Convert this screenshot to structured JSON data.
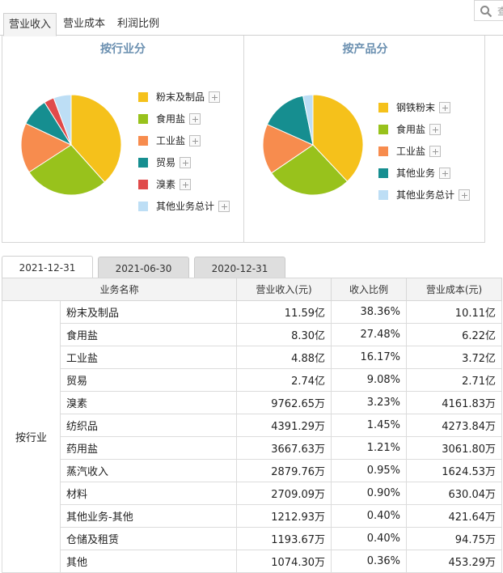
{
  "top_tabs": [
    "营业收入",
    "营业成本",
    "利润比例"
  ],
  "search": {
    "label": "查"
  },
  "pies": [
    {
      "title": "按行业分",
      "items": [
        {
          "label": "粉末及制品",
          "color": "#f5c11b",
          "value": 38.36
        },
        {
          "label": "食用盐",
          "color": "#98c21c",
          "value": 27.48
        },
        {
          "label": "工业盐",
          "color": "#f78c4e",
          "value": 16.17
        },
        {
          "label": "贸易",
          "color": "#168e90",
          "value": 9.08
        },
        {
          "label": "溴素",
          "color": "#e04a4a",
          "value": 3.23
        },
        {
          "label": "其他业务总计",
          "color": "#bddef5",
          "value": 5.68
        }
      ]
    },
    {
      "title": "按产品分",
      "items": [
        {
          "label": "钢铁粉末",
          "color": "#f5c11b",
          "value": 38.0
        },
        {
          "label": "食用盐",
          "color": "#98c21c",
          "value": 27.5
        },
        {
          "label": "工业盐",
          "color": "#f78c4e",
          "value": 16.2
        },
        {
          "label": "其他业务",
          "color": "#168e90",
          "value": 15.1
        },
        {
          "label": "其他业务总计",
          "color": "#bddef5",
          "value": 3.2
        }
      ]
    }
  ],
  "date_tabs": [
    "2021-12-31",
    "2021-06-30",
    "2020-12-31"
  ],
  "table": {
    "headers": [
      "业务名称",
      "营业收入(元)",
      "收入比例",
      "营业成本(元)"
    ],
    "group": "按行业",
    "rows": [
      {
        "name": "粉末及制品",
        "revenue": "11.59亿",
        "ratio": "38.36%",
        "cost": "10.11亿"
      },
      {
        "name": "食用盐",
        "revenue": "8.30亿",
        "ratio": "27.48%",
        "cost": "6.22亿"
      },
      {
        "name": "工业盐",
        "revenue": "4.88亿",
        "ratio": "16.17%",
        "cost": "3.72亿"
      },
      {
        "name": "贸易",
        "revenue": "2.74亿",
        "ratio": "9.08%",
        "cost": "2.71亿"
      },
      {
        "name": "溴素",
        "revenue": "9762.65万",
        "ratio": "3.23%",
        "cost": "4161.83万"
      },
      {
        "name": "纺织品",
        "revenue": "4391.29万",
        "ratio": "1.45%",
        "cost": "4273.84万"
      },
      {
        "name": "药用盐",
        "revenue": "3667.63万",
        "ratio": "1.21%",
        "cost": "3061.80万"
      },
      {
        "name": "蒸汽收入",
        "revenue": "2879.76万",
        "ratio": "0.95%",
        "cost": "1624.53万"
      },
      {
        "name": "材料",
        "revenue": "2709.09万",
        "ratio": "0.90%",
        "cost": "630.04万"
      },
      {
        "name": "其他业务-其他",
        "revenue": "1212.93万",
        "ratio": "0.40%",
        "cost": "421.64万"
      },
      {
        "name": "仓储及租赁",
        "revenue": "1193.67万",
        "ratio": "0.40%",
        "cost": "94.75万"
      },
      {
        "name": "其他",
        "revenue": "1074.30万",
        "ratio": "0.36%",
        "cost": "453.29万"
      }
    ]
  }
}
